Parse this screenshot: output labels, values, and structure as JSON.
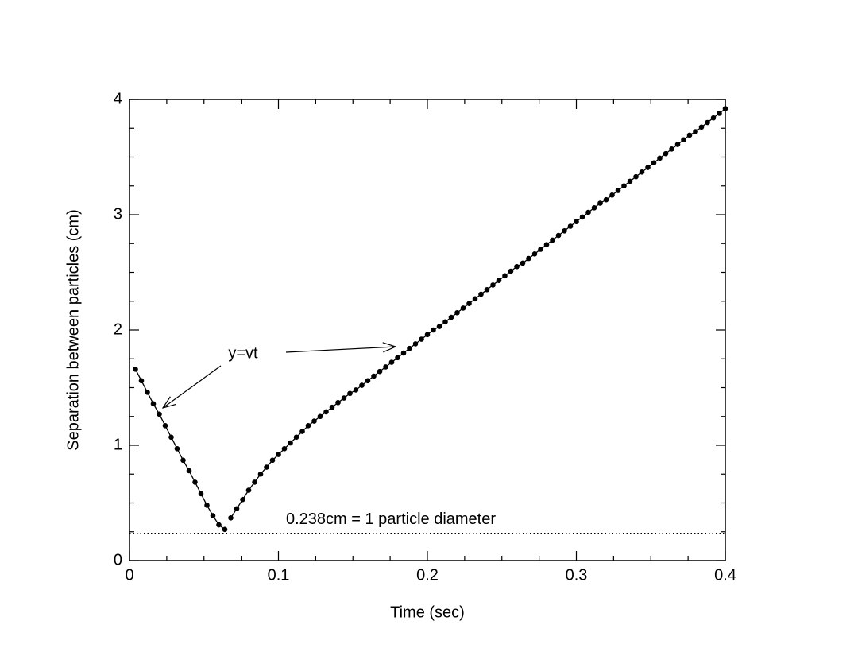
{
  "chart_data": {
    "type": "line",
    "xlabel": "Time (sec)",
    "ylabel": "Separation between particles (cm)",
    "xlim": [
      0,
      0.4
    ],
    "ylim": [
      0,
      4
    ],
    "xticks": [
      0,
      0.1,
      0.2,
      0.3,
      0.4
    ],
    "yticks": [
      0,
      1,
      2,
      3,
      4
    ],
    "xminorticks": [
      0.025,
      0.05,
      0.075,
      0.125,
      0.15,
      0.175,
      0.225,
      0.25,
      0.275,
      0.325,
      0.35,
      0.375
    ],
    "yminorticks": [
      0.25,
      0.5,
      0.75,
      1.25,
      1.5,
      1.75,
      2.25,
      2.5,
      2.75,
      3.25,
      3.5,
      3.75
    ],
    "hline": {
      "value": 0.238,
      "label": "0.238cm = 1 particle diameter",
      "style": "dotted"
    },
    "annotation": "y=vt",
    "series": [
      {
        "color": "#000000",
        "x": [
          0.004,
          0.008,
          0.012,
          0.016,
          0.02,
          0.024,
          0.028,
          0.032,
          0.036,
          0.04,
          0.044,
          0.048,
          0.052,
          0.056,
          0.06,
          0.064
        ],
        "values": [
          1.66,
          1.56,
          1.46,
          1.36,
          1.27,
          1.17,
          1.07,
          0.97,
          0.87,
          0.78,
          0.68,
          0.58,
          0.48,
          0.39,
          0.31,
          0.27
        ]
      },
      {
        "color": "#000000",
        "x": [
          0.068,
          0.072,
          0.076,
          0.08,
          0.084,
          0.088,
          0.092,
          0.096,
          0.1,
          0.104,
          0.108,
          0.112,
          0.116,
          0.12,
          0.124,
          0.128,
          0.132,
          0.136,
          0.14,
          0.144,
          0.148,
          0.152,
          0.156,
          0.16,
          0.164,
          0.168,
          0.172,
          0.176,
          0.18,
          0.184,
          0.188,
          0.192,
          0.196,
          0.2,
          0.204,
          0.208,
          0.212,
          0.216,
          0.22,
          0.224,
          0.228,
          0.232,
          0.236,
          0.24,
          0.244,
          0.248,
          0.252,
          0.256,
          0.26,
          0.264,
          0.268,
          0.272,
          0.276,
          0.28,
          0.284,
          0.288,
          0.292,
          0.296,
          0.3,
          0.304,
          0.308,
          0.312,
          0.316,
          0.32,
          0.324,
          0.328,
          0.332,
          0.336,
          0.34,
          0.344,
          0.348,
          0.352,
          0.356,
          0.36,
          0.364,
          0.368,
          0.372,
          0.376,
          0.38,
          0.384,
          0.388,
          0.392,
          0.396,
          0.4
        ],
        "values": [
          0.37,
          0.45,
          0.53,
          0.61,
          0.68,
          0.75,
          0.81,
          0.87,
          0.92,
          0.97,
          1.02,
          1.07,
          1.12,
          1.17,
          1.21,
          1.25,
          1.29,
          1.33,
          1.37,
          1.41,
          1.45,
          1.48,
          1.52,
          1.56,
          1.6,
          1.64,
          1.68,
          1.72,
          1.76,
          1.8,
          1.84,
          1.88,
          1.92,
          1.96,
          2.0,
          2.03,
          2.07,
          2.11,
          2.15,
          2.19,
          2.23,
          2.27,
          2.31,
          2.35,
          2.39,
          2.43,
          2.47,
          2.51,
          2.55,
          2.58,
          2.62,
          2.66,
          2.7,
          2.74,
          2.78,
          2.82,
          2.86,
          2.9,
          2.94,
          2.98,
          3.02,
          3.06,
          3.1,
          3.13,
          3.17,
          3.21,
          3.25,
          3.29,
          3.33,
          3.37,
          3.41,
          3.45,
          3.49,
          3.53,
          3.57,
          3.61,
          3.65,
          3.69,
          3.72,
          3.76,
          3.8,
          3.84,
          3.88,
          3.92
        ]
      }
    ]
  }
}
